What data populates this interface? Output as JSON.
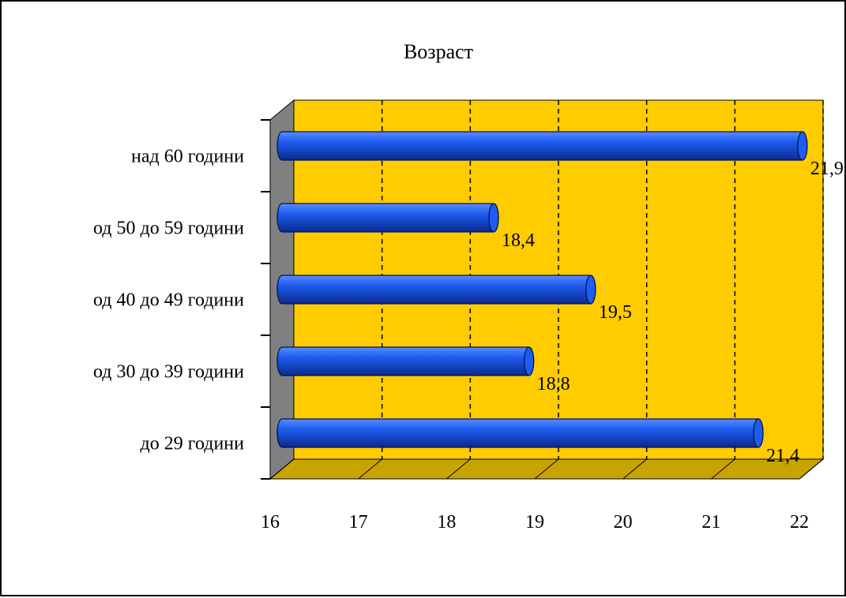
{
  "chart_data": {
    "type": "bar",
    "orientation": "horizontal",
    "style": "3d-cylinder",
    "title": "Возраст",
    "categories": [
      "до 29 години",
      "од 30 до 39 години",
      "од 40 до 49 години",
      "од 50 до 59 години",
      "над 60 години"
    ],
    "values": [
      21.4,
      18.8,
      19.5,
      18.4,
      21.9
    ],
    "value_labels": [
      "21,4",
      "18,8",
      "19,5",
      "18,4",
      "21,9"
    ],
    "xlim": [
      16,
      22
    ],
    "x_ticks": [
      "16",
      "17",
      "18",
      "19",
      "20",
      "21",
      "22"
    ],
    "xlabel": "",
    "ylabel": "",
    "grid": "vertical dashed",
    "legend": "none",
    "colors": {
      "plot_back": "#FFCC00",
      "floor": "#C8A400",
      "side_wall": "#808080",
      "bar": "#1F5CF0",
      "bar_highlight": "#5B8CFF",
      "bar_shadow": "#0A2B8F"
    }
  }
}
